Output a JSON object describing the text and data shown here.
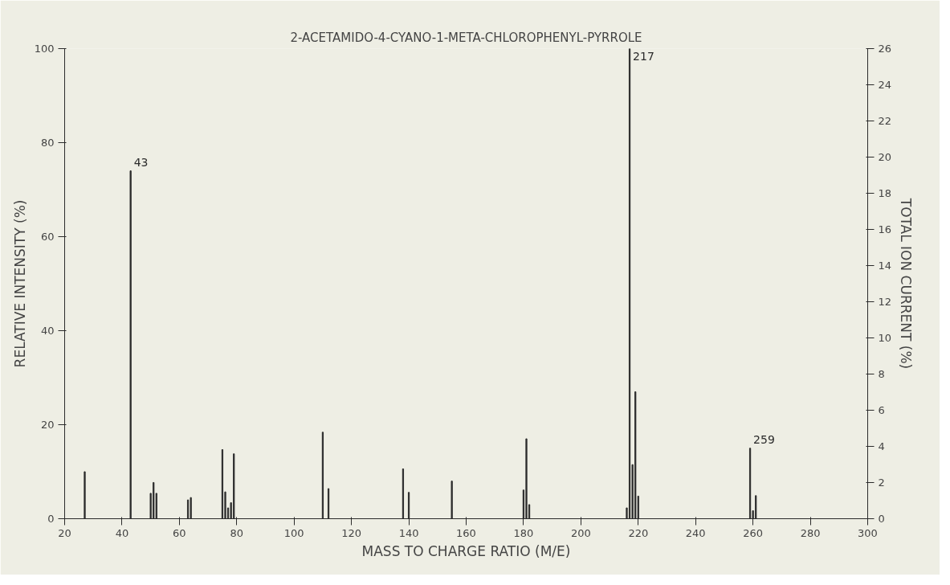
{
  "chart_data": {
    "type": "bar",
    "title": "2-ACETAMIDO-4-CYANO-1-META-CHLOROPHENYL-PYRROLE",
    "xlabel": "MASS TO CHARGE RATIO (M/E)",
    "ylabel": "RELATIVE INTENSITY (%)",
    "y2label": "TOTAL ION CURRENT (%)",
    "x": [
      27,
      43,
      50,
      51,
      52,
      63,
      64,
      75,
      76,
      77,
      78,
      79,
      110,
      112,
      138,
      140,
      155,
      180,
      181,
      182,
      216,
      217,
      218,
      219,
      220,
      259,
      260,
      261
    ],
    "series": [
      {
        "color": "#2b2b2b",
        "values": [
          10,
          74,
          5.4,
          7.7,
          5.4,
          4,
          4.5,
          14.7,
          5.7,
          2.3,
          3.4,
          13.8,
          18.4,
          6.4,
          10.6,
          5.6,
          8,
          6.1,
          17,
          3,
          2.3,
          100,
          11.5,
          27,
          4.8,
          15,
          1.7,
          4.9
        ]
      }
    ],
    "annotations": [
      {
        "text": "43",
        "x": 43,
        "y": 74
      },
      {
        "text": "217",
        "x": 217,
        "y": 100
      },
      {
        "text": "259",
        "x": 259,
        "y": 15
      }
    ],
    "xlim": [
      20,
      300
    ],
    "xticks": [
      20,
      40,
      60,
      80,
      100,
      120,
      140,
      160,
      180,
      200,
      220,
      240,
      260,
      280,
      300
    ],
    "ylim": [
      0,
      100
    ],
    "yticks": [
      0,
      20,
      40,
      60,
      80,
      100
    ],
    "y2lim": [
      0,
      26
    ],
    "y2ticks": [
      0,
      2,
      4,
      6,
      8,
      10,
      12,
      14,
      16,
      18,
      20,
      22,
      24,
      26
    ],
    "grid": false
  }
}
